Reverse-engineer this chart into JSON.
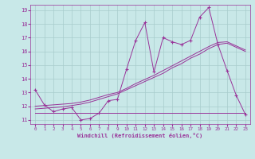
{
  "xlabel": "Windchill (Refroidissement éolien,°C)",
  "bg_color": "#c8e8e8",
  "grid_color": "#a8cccc",
  "line_color": "#993399",
  "xlim_min": -0.5,
  "xlim_max": 23.5,
  "ylim_min": 10.7,
  "ylim_max": 19.4,
  "xticks": [
    0,
    1,
    2,
    3,
    4,
    5,
    6,
    7,
    8,
    9,
    10,
    11,
    12,
    13,
    14,
    15,
    16,
    17,
    18,
    19,
    20,
    21,
    22,
    23
  ],
  "yticks": [
    11,
    12,
    13,
    14,
    15,
    16,
    17,
    18,
    19
  ],
  "series1_x": [
    0,
    1,
    2,
    3,
    4,
    5,
    6,
    7,
    8,
    9,
    10,
    11,
    12,
    13,
    14,
    15,
    16,
    17,
    18,
    19,
    20,
    21,
    22,
    23
  ],
  "series1_y": [
    13.2,
    12.1,
    11.6,
    11.8,
    11.9,
    11.0,
    11.1,
    11.5,
    12.4,
    12.5,
    14.7,
    16.8,
    18.1,
    14.5,
    17.0,
    16.7,
    16.5,
    16.8,
    18.5,
    19.2,
    16.5,
    14.6,
    12.8,
    11.4
  ],
  "series2_x": [
    0,
    1,
    2,
    3,
    4,
    5,
    6,
    7,
    8,
    9,
    10,
    11,
    12,
    13,
    14,
    15,
    16,
    17,
    18,
    19,
    20,
    21,
    22,
    23
  ],
  "series2_y": [
    11.5,
    11.5,
    11.5,
    11.5,
    11.5,
    11.5,
    11.5,
    11.5,
    11.5,
    11.5,
    11.5,
    11.5,
    11.5,
    11.5,
    11.5,
    11.5,
    11.5,
    11.5,
    11.5,
    11.5,
    11.5,
    11.5,
    11.5,
    11.5
  ],
  "series3_x": [
    0,
    1,
    2,
    3,
    4,
    5,
    6,
    7,
    8,
    9,
    10,
    11,
    12,
    13,
    14,
    15,
    16,
    17,
    18,
    19,
    20,
    21,
    22,
    23
  ],
  "series3_y": [
    11.8,
    11.85,
    11.9,
    11.95,
    12.05,
    12.15,
    12.3,
    12.5,
    12.7,
    12.9,
    13.2,
    13.5,
    13.8,
    14.1,
    14.4,
    14.8,
    15.1,
    15.5,
    15.8,
    16.2,
    16.5,
    16.6,
    16.3,
    16.0
  ],
  "series4_x": [
    0,
    1,
    2,
    3,
    4,
    5,
    6,
    7,
    8,
    9,
    10,
    11,
    12,
    13,
    14,
    15,
    16,
    17,
    18,
    19,
    20,
    21,
    22,
    23
  ],
  "series4_y": [
    12.0,
    12.05,
    12.1,
    12.15,
    12.2,
    12.3,
    12.45,
    12.65,
    12.85,
    13.0,
    13.3,
    13.65,
    13.95,
    14.25,
    14.6,
    14.95,
    15.3,
    15.65,
    16.0,
    16.35,
    16.65,
    16.7,
    16.4,
    16.1
  ]
}
